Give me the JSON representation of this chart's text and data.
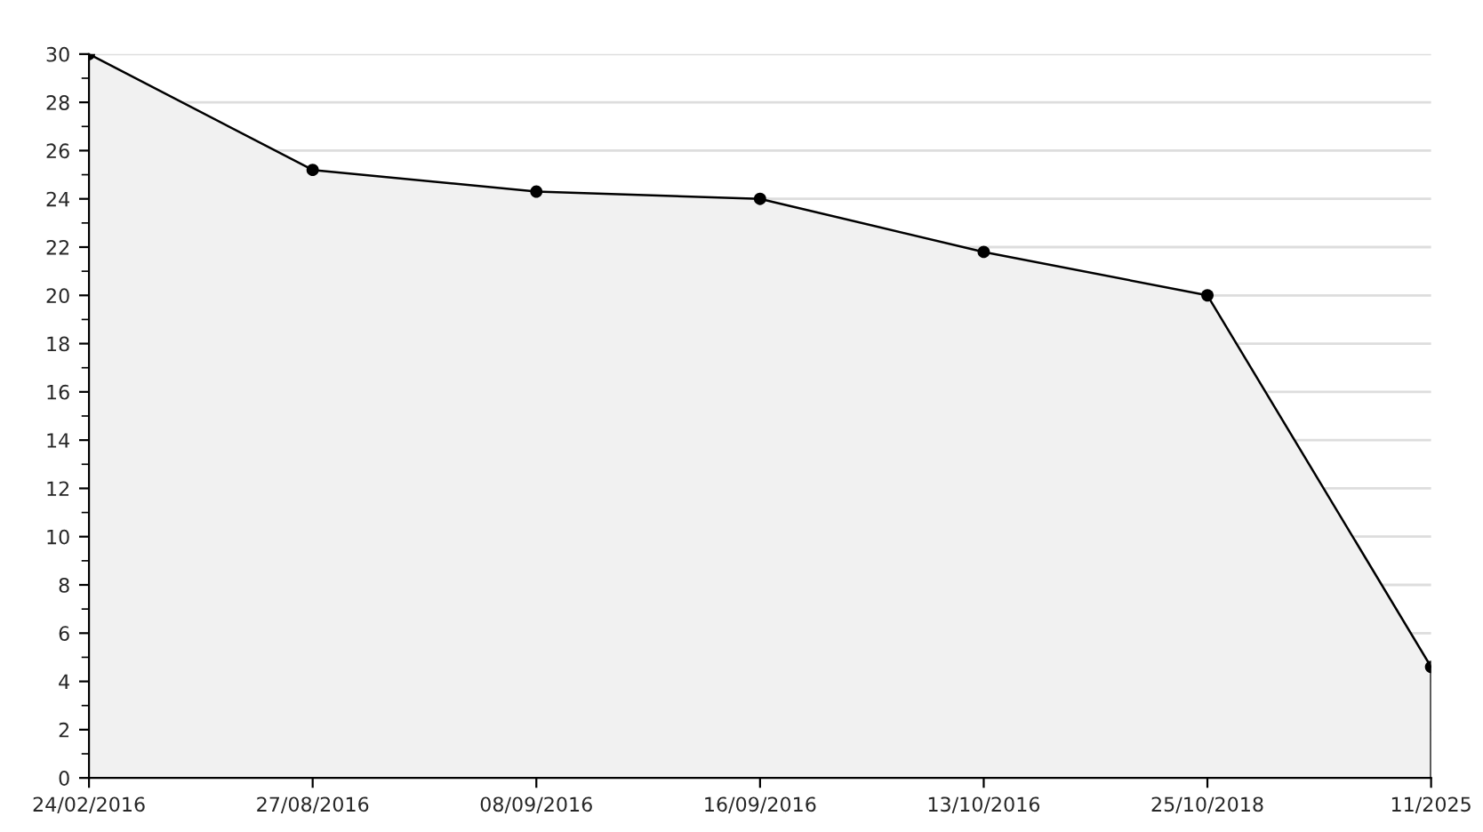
{
  "chart_data": {
    "type": "area",
    "categories": [
      "24/02/2016",
      "27/08/2016",
      "08/09/2016",
      "16/09/2016",
      "13/10/2016",
      "25/10/2018",
      "11/2025"
    ],
    "series": [
      {
        "color": "#000000",
        "values": [
          30,
          25.2,
          24.3,
          24.0,
          21.8,
          20.0,
          4.6
        ]
      }
    ],
    "ylim": [
      0,
      30
    ],
    "yticks": [
      0,
      2,
      4,
      6,
      8,
      10,
      12,
      14,
      16,
      18,
      20,
      22,
      24,
      26,
      28,
      30
    ],
    "grid": "y",
    "marker": "circle",
    "line_style": "solid",
    "legend": false
  }
}
